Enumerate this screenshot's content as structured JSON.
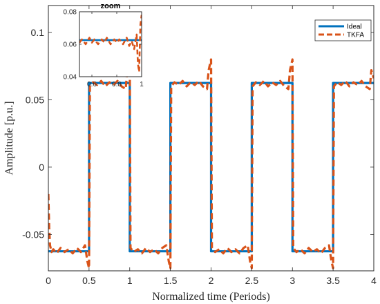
{
  "chart_data": [
    {
      "type": "line",
      "xlabel": "Normalized time (Periods)",
      "ylabel": "Amplitude [p.u.]",
      "xlim": [
        0,
        4
      ],
      "ylim": [
        -0.077,
        0.12
      ],
      "xticks": [
        0,
        0.5,
        1,
        1.5,
        2,
        2.5,
        3,
        3.5,
        4
      ],
      "xtick_labels": [
        "0",
        "0.5",
        "1",
        "1.5",
        "2",
        "2.5",
        "3",
        "3.5",
        "4"
      ],
      "yticks": [
        -0.05,
        0,
        0.05,
        0.1
      ],
      "ytick_labels": [
        "-0.05",
        "0",
        "0.05",
        "0.1"
      ],
      "grid": false,
      "legend_position": "top-right",
      "series": [
        {
          "name": "Ideal",
          "color": "#0072BD",
          "style": "solid",
          "x": [
            0,
            0.5,
            0.5,
            1.0,
            1.0,
            1.5,
            1.5,
            2.0,
            2.0,
            2.5,
            2.5,
            3.0,
            3.0,
            3.5,
            3.5,
            4.0
          ],
          "y": [
            -0.0625,
            -0.0625,
            0.0625,
            0.0625,
            -0.0625,
            -0.0625,
            0.0625,
            0.0625,
            -0.0625,
            -0.0625,
            0.0625,
            0.0625,
            -0.0625,
            -0.0625,
            0.0625,
            0.0625
          ]
        },
        {
          "name": "TKFA",
          "color": "#D95319",
          "style": "dashed",
          "x": [
            0,
            0.01,
            0.02,
            0.04,
            0.06,
            0.1,
            0.15,
            0.2,
            0.25,
            0.3,
            0.35,
            0.4,
            0.45,
            0.48,
            0.5,
            0.51,
            0.55,
            0.6,
            0.65,
            0.7,
            0.75,
            0.8,
            0.85,
            0.9,
            0.95,
            0.97,
            1.0,
            1.01,
            1.05,
            1.1,
            1.15,
            1.2,
            1.25,
            1.3,
            1.35,
            1.4,
            1.45,
            1.48,
            1.5,
            1.51,
            1.55,
            1.6,
            1.65,
            1.7,
            1.75,
            1.8,
            1.85,
            1.9,
            1.95,
            1.97,
            2.0,
            2.01,
            2.05,
            2.1,
            2.15,
            2.2,
            2.25,
            2.3,
            2.35,
            2.4,
            2.45,
            2.48,
            2.5,
            2.51,
            2.55,
            2.6,
            2.65,
            2.7,
            2.75,
            2.8,
            2.85,
            2.9,
            2.95,
            2.97,
            3.0,
            3.01,
            3.05,
            3.1,
            3.15,
            3.2,
            3.25,
            3.3,
            3.35,
            3.4,
            3.45,
            3.48,
            3.5,
            3.51,
            3.55,
            3.6,
            3.65,
            3.7,
            3.75,
            3.8,
            3.85,
            3.9,
            3.95,
            3.97,
            4.0
          ],
          "y": [
            -0.02,
            -0.045,
            -0.058,
            -0.063,
            -0.061,
            -0.064,
            -0.06,
            -0.063,
            -0.061,
            -0.064,
            -0.06,
            -0.063,
            -0.058,
            -0.07,
            -0.075,
            0.06,
            0.063,
            0.061,
            0.064,
            0.06,
            0.063,
            0.061,
            0.064,
            0.06,
            0.058,
            0.072,
            0.08,
            -0.06,
            -0.063,
            -0.061,
            -0.064,
            -0.06,
            -0.063,
            -0.061,
            -0.064,
            -0.06,
            -0.058,
            -0.07,
            -0.075,
            0.06,
            0.063,
            0.061,
            0.064,
            0.06,
            0.063,
            0.061,
            0.064,
            0.06,
            0.058,
            0.072,
            0.08,
            -0.06,
            -0.063,
            -0.061,
            -0.064,
            -0.06,
            -0.063,
            -0.061,
            -0.064,
            -0.06,
            -0.058,
            -0.07,
            -0.075,
            0.06,
            0.063,
            0.061,
            0.064,
            0.06,
            0.063,
            0.061,
            0.064,
            0.06,
            0.058,
            0.072,
            0.08,
            -0.06,
            -0.063,
            -0.061,
            -0.064,
            -0.06,
            -0.063,
            -0.061,
            -0.064,
            -0.06,
            -0.058,
            -0.07,
            -0.075,
            0.06,
            0.063,
            0.061,
            0.064,
            0.06,
            0.063,
            0.061,
            0.064,
            0.06,
            0.058,
            0.072,
            0.066
          ]
        }
      ]
    },
    {
      "type": "line",
      "title": "zoom",
      "xlim": [
        0.5,
        1.0
      ],
      "ylim": [
        0.04,
        0.08
      ],
      "xticks": [
        0.6,
        0.8,
        1
      ],
      "xtick_labels": [
        "0.6",
        "0.8",
        "1"
      ],
      "yticks": [
        0.04,
        0.06,
        0.08
      ],
      "ytick_labels": [
        "0.04",
        "0.06",
        "0.08"
      ],
      "series": [
        {
          "name": "Ideal",
          "color": "#0072BD",
          "style": "solid",
          "x": [
            0.5,
            1.0
          ],
          "y": [
            0.0625,
            0.0625
          ]
        },
        {
          "name": "TKFA",
          "color": "#D95319",
          "style": "dashed",
          "x": [
            0.5,
            0.52,
            0.55,
            0.58,
            0.6,
            0.62,
            0.65,
            0.68,
            0.7,
            0.72,
            0.75,
            0.78,
            0.8,
            0.82,
            0.85,
            0.88,
            0.9,
            0.92,
            0.94,
            0.96,
            0.97,
            0.98,
            0.99,
            1.0
          ],
          "y": [
            0.061,
            0.063,
            0.06,
            0.064,
            0.061,
            0.063,
            0.06,
            0.063,
            0.061,
            0.064,
            0.06,
            0.063,
            0.061,
            0.063,
            0.06,
            0.064,
            0.059,
            0.062,
            0.057,
            0.066,
            0.048,
            0.043,
            0.072,
            0.078
          ]
        }
      ]
    }
  ]
}
